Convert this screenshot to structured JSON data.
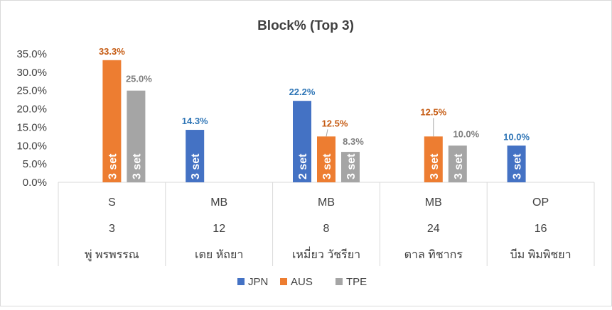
{
  "chart_data": {
    "type": "bar",
    "title": "Block% (Top 3)",
    "categories": [
      {
        "position": "S",
        "number": "3",
        "name": "พู่ พรพรรณ"
      },
      {
        "position": "MB",
        "number": "12",
        "name": "เตย หัถยา"
      },
      {
        "position": "MB",
        "number": "8",
        "name": "เหมี่ยว วัชรียา"
      },
      {
        "position": "MB",
        "number": "24",
        "name": "ตาล ทิชากร"
      },
      {
        "position": "OP",
        "number": "16",
        "name": "บีม พิมพิชยา"
      }
    ],
    "series": [
      {
        "name": "JPN",
        "color": "#4472C4",
        "label_color": "#2E75B6",
        "values": [
          null,
          14.3,
          22.2,
          null,
          10.0
        ],
        "labels": [
          null,
          "14.3%",
          "22.2%",
          null,
          "10.0%"
        ],
        "inner": [
          null,
          "3 set",
          "2 set",
          null,
          "3 set"
        ]
      },
      {
        "name": "AUS",
        "color": "#ED7D31",
        "label_color": "#C55A11",
        "values": [
          33.3,
          null,
          12.5,
          12.5,
          null
        ],
        "labels": [
          "33.3%",
          null,
          "12.5%",
          "12.5%",
          null
        ],
        "inner": [
          "3 set",
          null,
          "3 set",
          "3 set",
          null
        ]
      },
      {
        "name": "TPE",
        "color": "#A5A5A5",
        "label_color": "#7F7F7F",
        "values": [
          25.0,
          null,
          8.3,
          10.0,
          null
        ],
        "labels": [
          "25.0%",
          null,
          "8.3%",
          "10.0%",
          null
        ],
        "inner": [
          "3 set",
          null,
          "3 set",
          "3 set",
          null
        ]
      }
    ],
    "y_ticks": [
      "0.0%",
      "5.0%",
      "10.0%",
      "15.0%",
      "20.0%",
      "25.0%",
      "30.0%",
      "35.0%"
    ],
    "ylim": [
      0,
      35
    ],
    "grid": false,
    "legend_position": "bottom"
  }
}
